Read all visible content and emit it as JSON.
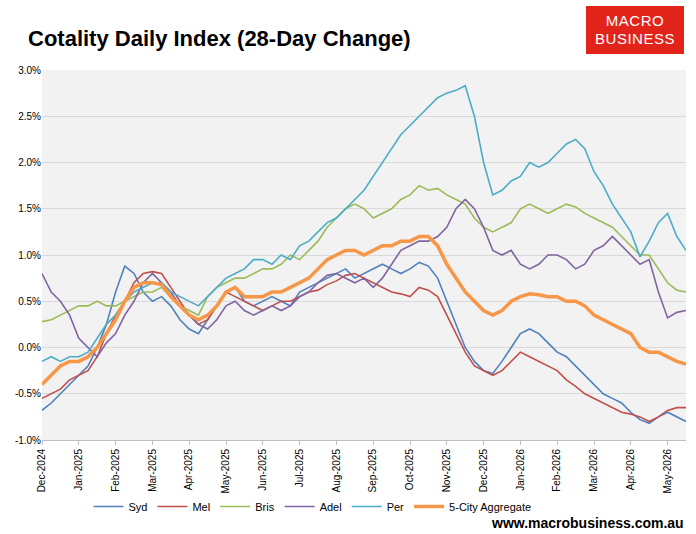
{
  "chart_data": {
    "type": "line",
    "title": "Cotality Daily Index (28-Day Change)",
    "logo": [
      "MACRO",
      "BUSINESS"
    ],
    "source": "www.macrobusiness.com.au",
    "categories": [
      "Dec-2024",
      null,
      null,
      null,
      "Jan-2025",
      null,
      null,
      null,
      "Feb-2025",
      null,
      null,
      null,
      "Mar-2025",
      null,
      null,
      null,
      "Apr-2025",
      null,
      null,
      null,
      "May-2025",
      null,
      null,
      null,
      "Jun-2025",
      null,
      null,
      null,
      "Jul-2025",
      null,
      null,
      null,
      "Aug-2025",
      null,
      null,
      null,
      "Sep-2025",
      null,
      null,
      null,
      "Oct-2025",
      null,
      null,
      null,
      "Nov-2025",
      null,
      null,
      null,
      "Dec-2025",
      null,
      null,
      null,
      "Jan-2026",
      null,
      null,
      null,
      "Feb-2026",
      null,
      null,
      null,
      "Mar-2026",
      null,
      null,
      null,
      "Apr-2026",
      null,
      null,
      null,
      "May-2026",
      null,
      null
    ],
    "series": [
      {
        "name": "Syd",
        "color": "#4f81bd",
        "line_style": "solid",
        "values": [
          -0.68,
          -0.6,
          -0.5,
          -0.4,
          -0.3,
          -0.2,
          0.0,
          0.25,
          0.6,
          0.88,
          0.8,
          0.6,
          0.5,
          0.55,
          0.45,
          0.3,
          0.2,
          0.15,
          0.3,
          0.45,
          0.6,
          0.65,
          0.5,
          0.45,
          0.5,
          0.55,
          0.5,
          0.45,
          0.6,
          0.65,
          0.7,
          0.75,
          0.8,
          0.85,
          0.75,
          0.8,
          0.85,
          0.9,
          0.85,
          0.8,
          0.85,
          0.92,
          0.88,
          0.75,
          0.5,
          0.25,
          0.0,
          -0.15,
          -0.25,
          -0.28,
          -0.15,
          0.0,
          0.15,
          0.2,
          0.15,
          0.05,
          -0.05,
          -0.1,
          -0.2,
          -0.3,
          -0.4,
          -0.5,
          -0.55,
          -0.6,
          -0.7,
          -0.78,
          -0.82,
          -0.75,
          -0.7,
          -0.75,
          -0.8
        ]
      },
      {
        "name": "Mel",
        "color": "#c0504d",
        "line_style": "solid",
        "values": [
          -0.55,
          -0.5,
          -0.45,
          -0.35,
          -0.3,
          -0.25,
          -0.1,
          0.15,
          0.35,
          0.5,
          0.7,
          0.8,
          0.82,
          0.8,
          0.65,
          0.5,
          0.35,
          0.25,
          0.3,
          0.45,
          0.6,
          0.55,
          0.5,
          0.45,
          0.4,
          0.45,
          0.5,
          0.5,
          0.55,
          0.6,
          0.62,
          0.68,
          0.72,
          0.78,
          0.8,
          0.75,
          0.7,
          0.65,
          0.6,
          0.58,
          0.55,
          0.65,
          0.62,
          0.55,
          0.35,
          0.15,
          -0.05,
          -0.2,
          -0.25,
          -0.3,
          -0.25,
          -0.15,
          -0.05,
          -0.1,
          -0.15,
          -0.2,
          -0.25,
          -0.35,
          -0.42,
          -0.5,
          -0.55,
          -0.6,
          -0.65,
          -0.7,
          -0.72,
          -0.75,
          -0.8,
          -0.75,
          -0.68,
          -0.65,
          -0.65
        ]
      },
      {
        "name": "Bris",
        "color": "#9bbb59",
        "line_style": "solid",
        "values": [
          0.28,
          0.3,
          0.35,
          0.4,
          0.45,
          0.45,
          0.5,
          0.45,
          0.45,
          0.5,
          0.55,
          0.6,
          0.6,
          0.65,
          0.55,
          0.45,
          0.4,
          0.35,
          0.55,
          0.65,
          0.7,
          0.75,
          0.75,
          0.8,
          0.85,
          0.85,
          0.9,
          1.0,
          0.95,
          1.05,
          1.15,
          1.3,
          1.4,
          1.5,
          1.55,
          1.5,
          1.4,
          1.45,
          1.5,
          1.6,
          1.65,
          1.75,
          1.7,
          1.72,
          1.65,
          1.6,
          1.55,
          1.4,
          1.3,
          1.25,
          1.3,
          1.35,
          1.5,
          1.55,
          1.5,
          1.45,
          1.5,
          1.55,
          1.52,
          1.45,
          1.4,
          1.35,
          1.3,
          1.2,
          1.1,
          1.0,
          1.0,
          0.85,
          0.7,
          0.62,
          0.6
        ]
      },
      {
        "name": "Adel",
        "color": "#8064a2",
        "line_style": "solid",
        "values": [
          0.8,
          0.6,
          0.5,
          0.35,
          0.1,
          0.0,
          -0.1,
          0.05,
          0.15,
          0.35,
          0.5,
          0.7,
          0.8,
          0.7,
          0.6,
          0.45,
          0.35,
          0.25,
          0.2,
          0.3,
          0.45,
          0.5,
          0.4,
          0.35,
          0.4,
          0.45,
          0.4,
          0.45,
          0.55,
          0.6,
          0.7,
          0.78,
          0.8,
          0.75,
          0.7,
          0.75,
          0.65,
          0.75,
          0.9,
          1.05,
          1.1,
          1.15,
          1.15,
          1.2,
          1.3,
          1.5,
          1.6,
          1.5,
          1.3,
          1.05,
          1.0,
          1.05,
          0.9,
          0.85,
          0.9,
          1.0,
          1.0,
          0.95,
          0.85,
          0.9,
          1.05,
          1.1,
          1.2,
          1.1,
          1.0,
          0.9,
          0.95,
          0.6,
          0.32,
          0.38,
          0.4
        ]
      },
      {
        "name": "Per",
        "color": "#4bacc6",
        "line_style": "solid",
        "values": [
          -0.15,
          -0.1,
          -0.15,
          -0.1,
          -0.1,
          -0.05,
          0.1,
          0.25,
          0.35,
          0.5,
          0.6,
          0.65,
          0.7,
          0.7,
          0.6,
          0.55,
          0.5,
          0.45,
          0.55,
          0.65,
          0.75,
          0.8,
          0.85,
          0.95,
          0.95,
          0.9,
          1.0,
          0.95,
          1.1,
          1.15,
          1.25,
          1.35,
          1.4,
          1.5,
          1.6,
          1.7,
          1.85,
          2.0,
          2.15,
          2.3,
          2.4,
          2.5,
          2.6,
          2.7,
          2.75,
          2.78,
          2.83,
          2.5,
          2.0,
          1.65,
          1.7,
          1.8,
          1.85,
          2.0,
          1.95,
          2.0,
          2.1,
          2.2,
          2.25,
          2.15,
          1.9,
          1.75,
          1.55,
          1.4,
          1.25,
          0.98,
          1.15,
          1.35,
          1.45,
          1.2,
          1.05
        ]
      },
      {
        "name": "5-City Aggregate",
        "color": "#f79646",
        "line_style": "thick",
        "values": [
          -0.4,
          -0.3,
          -0.2,
          -0.15,
          -0.15,
          -0.1,
          0.0,
          0.15,
          0.3,
          0.5,
          0.65,
          0.7,
          0.7,
          0.68,
          0.55,
          0.45,
          0.35,
          0.3,
          0.35,
          0.45,
          0.6,
          0.65,
          0.55,
          0.55,
          0.55,
          0.6,
          0.6,
          0.65,
          0.7,
          0.75,
          0.85,
          0.95,
          1.0,
          1.05,
          1.05,
          1.0,
          1.05,
          1.1,
          1.1,
          1.15,
          1.15,
          1.2,
          1.2,
          1.1,
          0.9,
          0.75,
          0.6,
          0.5,
          0.4,
          0.35,
          0.4,
          0.5,
          0.55,
          0.58,
          0.57,
          0.55,
          0.55,
          0.5,
          0.5,
          0.45,
          0.35,
          0.3,
          0.25,
          0.2,
          0.15,
          0.0,
          -0.05,
          -0.05,
          -0.1,
          -0.15,
          -0.18
        ]
      }
    ],
    "ylim": [
      -1.0,
      3.0
    ],
    "yticks": [
      {
        "value": -1.0,
        "label": "-1.0%"
      },
      {
        "value": -0.5,
        "label": "-0.5%"
      },
      {
        "value": 0.0,
        "label": "0.0%"
      },
      {
        "value": 0.5,
        "label": "0.5%"
      },
      {
        "value": 1.0,
        "label": "1.0%"
      },
      {
        "value": 1.5,
        "label": "1.5%"
      },
      {
        "value": 2.0,
        "label": "2.0%"
      },
      {
        "value": 2.5,
        "label": "2.5%"
      },
      {
        "value": 3.0,
        "label": "3.0%"
      }
    ],
    "grid": true,
    "legend": "bottom"
  }
}
